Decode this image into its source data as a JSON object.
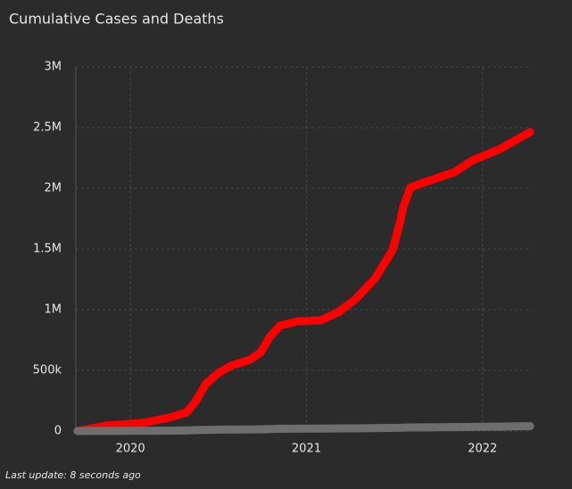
{
  "chart_data": {
    "type": "line",
    "title": "Cumulative Cases and Deaths",
    "footer": "Last update: 8 seconds ago",
    "xlim": [
      2019.69,
      2022.28
    ],
    "xticks": [
      2020,
      2021,
      2022
    ],
    "ylim": [
      0,
      3000000
    ],
    "yticks": [
      0,
      {
        "value": 500000,
        "label": "500k"
      },
      {
        "value": 1000000,
        "label": "1M"
      },
      {
        "value": 1500000,
        "label": "1.5M"
      },
      {
        "value": 2000000,
        "label": "2M"
      },
      {
        "value": 2500000,
        "label": "2.5M"
      },
      {
        "value": 3000000,
        "label": "3M"
      }
    ],
    "grid": true,
    "x": [
      2019.7,
      2019.86,
      2020.07,
      2020.22,
      2020.32,
      2020.37,
      2020.43,
      2020.5,
      2020.57,
      2020.68,
      2020.74,
      2020.79,
      2020.85,
      2020.95,
      2021.08,
      2021.18,
      2021.28,
      2021.39,
      2021.49,
      2021.53,
      2021.55,
      2021.59,
      2021.69,
      2021.84,
      2021.94,
      2022.1,
      2022.27
    ],
    "series": [
      {
        "color": "#ff0000",
        "values": [
          0,
          44000,
          66000,
          110000,
          154000,
          243000,
          390000,
          478000,
          537000,
          588000,
          647000,
          772000,
          868000,
          904000,
          912000,
          978000,
          1088000,
          1257000,
          1493000,
          1713000,
          1846000,
          2007000,
          2059000,
          2132000,
          2228000,
          2324000,
          2463000
        ]
      },
      {
        "color": "#6e6e6e",
        "values": [
          0,
          1000,
          2000,
          3000,
          5000,
          7000,
          9000,
          11000,
          12000,
          13000,
          14000,
          16000,
          18000,
          19000,
          20000,
          21000,
          22000,
          24000,
          26000,
          27000,
          28000,
          29000,
          30000,
          32000,
          34000,
          36000,
          40000
        ]
      }
    ]
  }
}
